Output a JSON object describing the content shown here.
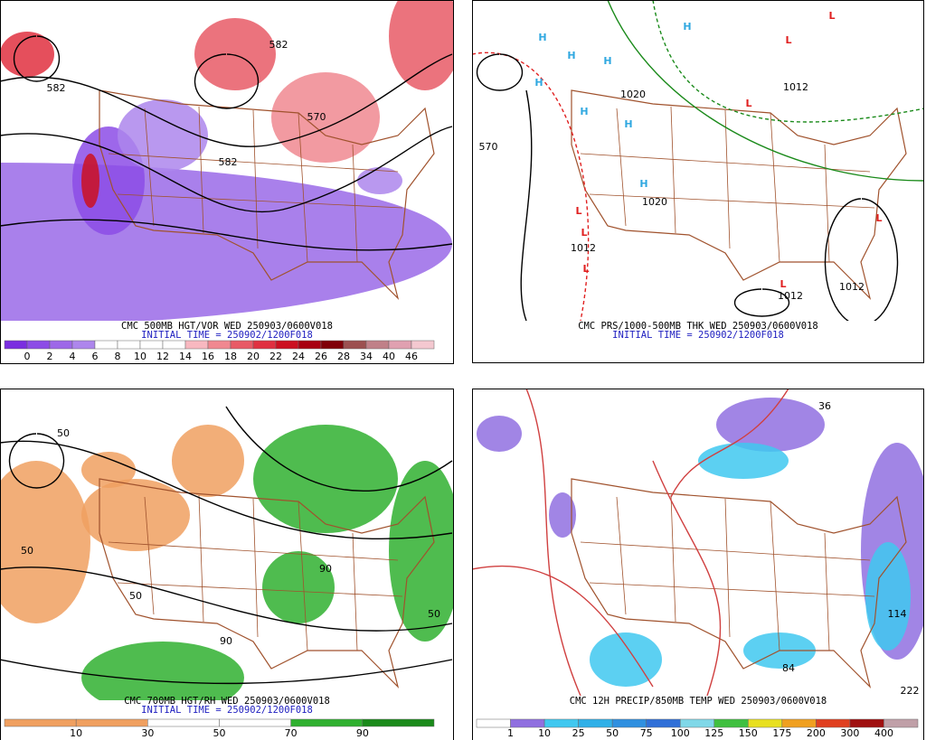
{
  "panels": [
    {
      "title": "CMC 500MB HGT/VOR WED 250903/0600V018",
      "subtitle": "INITIAL TIME = 250902/1200F018",
      "colorbar": {
        "labels": [
          0,
          2,
          4,
          6,
          8,
          10,
          12,
          14,
          16,
          18,
          20,
          22,
          24,
          26,
          28,
          34,
          40,
          46
        ],
        "colors": [
          "#7a2ee0",
          "#8c4ce6",
          "#9d68e8",
          "#ad86ec",
          "#ffffff",
          "#ffffff",
          "#ffffff",
          "#ffffff",
          "#f8b8c0",
          "#f08890",
          "#e85a66",
          "#e03040",
          "#cc1020",
          "#a80010",
          "#800008",
          "#9c5050",
          "#c08088",
          "#e0a0b0",
          "#f4c8d0"
        ]
      },
      "map_labels": [
        "582",
        "582",
        "570",
        "582"
      ]
    },
    {
      "title": "CMC PRS/1000-500MB THK WED 250903/0600V018",
      "subtitle": "INITIAL TIME = 250902/1200F018",
      "map_labels": [
        "H",
        "H",
        "H",
        "H",
        "H",
        "H",
        "H",
        "H",
        "L",
        "L",
        "L",
        "L",
        "L",
        "L",
        "L",
        "L",
        "1020",
        "1012",
        "1012",
        "1012",
        "1020",
        "570",
        "1012"
      ]
    },
    {
      "title": "CMC 700MB HGT/RH WED 250903/0600V018",
      "subtitle": "INITIAL TIME = 250902/1200F018",
      "colorbar": {
        "labels": [
          10,
          30,
          50,
          70,
          90
        ],
        "colors": [
          "#f0a060",
          "#f0a060",
          "#ffffff",
          "#ffffff",
          "#30b030",
          "#1a8a1a"
        ]
      },
      "map_labels": [
        "50",
        "50",
        "90",
        "50",
        "90",
        "50"
      ]
    },
    {
      "title": "CMC 12H PRECIP/850MB TEMP WED 250903/0600V018",
      "colorbar": {
        "labels": [
          1,
          10,
          25,
          50,
          75,
          100,
          125,
          150,
          175,
          200,
          300,
          400
        ],
        "colors": [
          "#ffffff",
          "#9070e0",
          "#40c8f0",
          "#30b0e8",
          "#2f90e0",
          "#3070d8",
          "#80d8e8",
          "#40c040",
          "#e8e020",
          "#f0a020",
          "#e04020",
          "#a01010",
          "#c0a0a8"
        ]
      },
      "map_labels": [
        "222",
        "114",
        "84",
        "36"
      ]
    }
  ]
}
